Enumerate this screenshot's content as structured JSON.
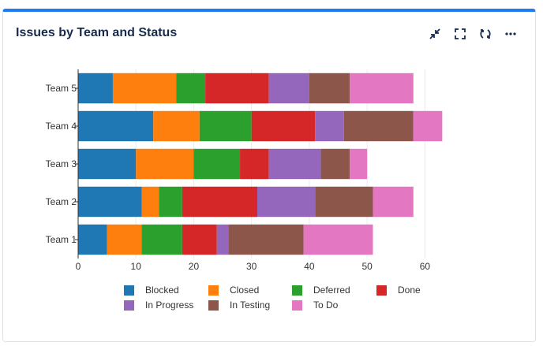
{
  "widget": {
    "title": "Issues by Team and Status",
    "tools": [
      {
        "name": "minimize-icon"
      },
      {
        "name": "fullscreen-icon"
      },
      {
        "name": "refresh-icon"
      },
      {
        "name": "more-icon"
      }
    ]
  },
  "chart_data": {
    "type": "bar",
    "orientation": "horizontal",
    "stacked": true,
    "title": "Issues by Team and Status",
    "categories": [
      "Team 1",
      "Team 2",
      "Team 3",
      "Team 4",
      "Team 5"
    ],
    "series": [
      {
        "name": "Blocked",
        "color": "#1f77b4",
        "values": [
          5,
          11,
          10,
          13,
          6
        ]
      },
      {
        "name": "Closed",
        "color": "#ff7f0e",
        "values": [
          6,
          3,
          10,
          8,
          11
        ]
      },
      {
        "name": "Deferred",
        "color": "#2ca02c",
        "values": [
          7,
          4,
          8,
          9,
          5
        ]
      },
      {
        "name": "Done",
        "color": "#d62728",
        "values": [
          6,
          13,
          5,
          11,
          11
        ]
      },
      {
        "name": "In Progress",
        "color": "#9467bd",
        "values": [
          2,
          10,
          9,
          5,
          7
        ]
      },
      {
        "name": "In Testing",
        "color": "#8c564b",
        "values": [
          13,
          10,
          5,
          12,
          7
        ]
      },
      {
        "name": "To Do",
        "color": "#e377c2",
        "values": [
          12,
          7,
          3,
          5,
          11
        ]
      }
    ],
    "xlim": [
      0,
      65
    ],
    "xticks": [
      0,
      10,
      20,
      30,
      40,
      50,
      60
    ],
    "xlabel": "",
    "ylabel": "",
    "grid": true,
    "legend_position": "bottom"
  }
}
